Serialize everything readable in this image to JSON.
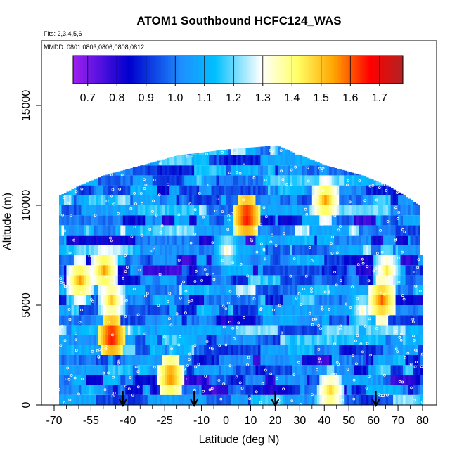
{
  "chart_data": {
    "type": "heatmap",
    "title": "ATOM1 Southbound HCFC124_WAS",
    "flights_label": "Flts: 2,3,4,5,6",
    "dates_label": "MMDD: 0801,0803,0806,0808,0812",
    "xlabel": "Latitude (deg N)",
    "ylabel": "Altitude (m)",
    "xlim": [
      -70,
      85
    ],
    "ylim": [
      0,
      18000
    ],
    "x_ticks": [
      -70,
      -55,
      -40,
      -25,
      -10,
      0,
      10,
      20,
      30,
      40,
      50,
      60,
      70,
      80
    ],
    "x_minor_ticks": [
      -65,
      -60,
      -50,
      -45,
      -35,
      -30,
      -20,
      -15,
      -5,
      5,
      15,
      25,
      35,
      45,
      55,
      65,
      75
    ],
    "y_ticks": [
      0,
      5000,
      10000,
      15000
    ],
    "colorbar": {
      "min": 0.65,
      "max": 1.78,
      "ticks": [
        0.7,
        0.8,
        0.9,
        1.0,
        1.1,
        1.2,
        1.3,
        1.4,
        1.5,
        1.6,
        1.7
      ],
      "colors": [
        "#a020f0",
        "#0000cd",
        "#1e90ff",
        "#00bfff",
        "#ffffff",
        "#ffff66",
        "#ffa500",
        "#ff0000",
        "#b22222"
      ]
    },
    "curtain_extent": {
      "lat_min": -68,
      "lat_max": 80,
      "alt_top_by_lat": [
        [
          -68,
          10500
        ],
        [
          -60,
          11000
        ],
        [
          -50,
          11500
        ],
        [
          -35,
          12000
        ],
        [
          -20,
          12500
        ],
        [
          0,
          12800
        ],
        [
          20,
          13000
        ],
        [
          30,
          12500
        ],
        [
          40,
          12000
        ],
        [
          55,
          11500
        ],
        [
          65,
          11000
        ],
        [
          72,
          10500
        ],
        [
          78,
          10000
        ],
        [
          80,
          5000
        ]
      ]
    },
    "hotspots": [
      {
        "lat": -23,
        "alt": 1200,
        "value": 1.6
      },
      {
        "lat": -47,
        "alt": 3200,
        "value": 1.7
      },
      {
        "lat": -50,
        "alt": 6500,
        "value": 1.55
      },
      {
        "lat": -47,
        "alt": 5000,
        "value": 1.5
      },
      {
        "lat": 8,
        "alt": 9200,
        "value": 1.7
      },
      {
        "lat": 40,
        "alt": 10000,
        "value": 1.55
      },
      {
        "lat": 65,
        "alt": 6500,
        "value": 1.45
      },
      {
        "lat": 42,
        "alt": 400,
        "value": 1.5
      },
      {
        "lat": 63,
        "alt": 5000,
        "value": 1.6
      },
      {
        "lat": 55,
        "alt": 4500,
        "value": 1.35
      },
      {
        "lat": 0,
        "alt": 7500,
        "value": 1.35
      },
      {
        "lat": -60,
        "alt": 6000,
        "value": 1.55
      }
    ],
    "flight_markers_lat": [
      -42,
      -13,
      20,
      61
    ]
  }
}
